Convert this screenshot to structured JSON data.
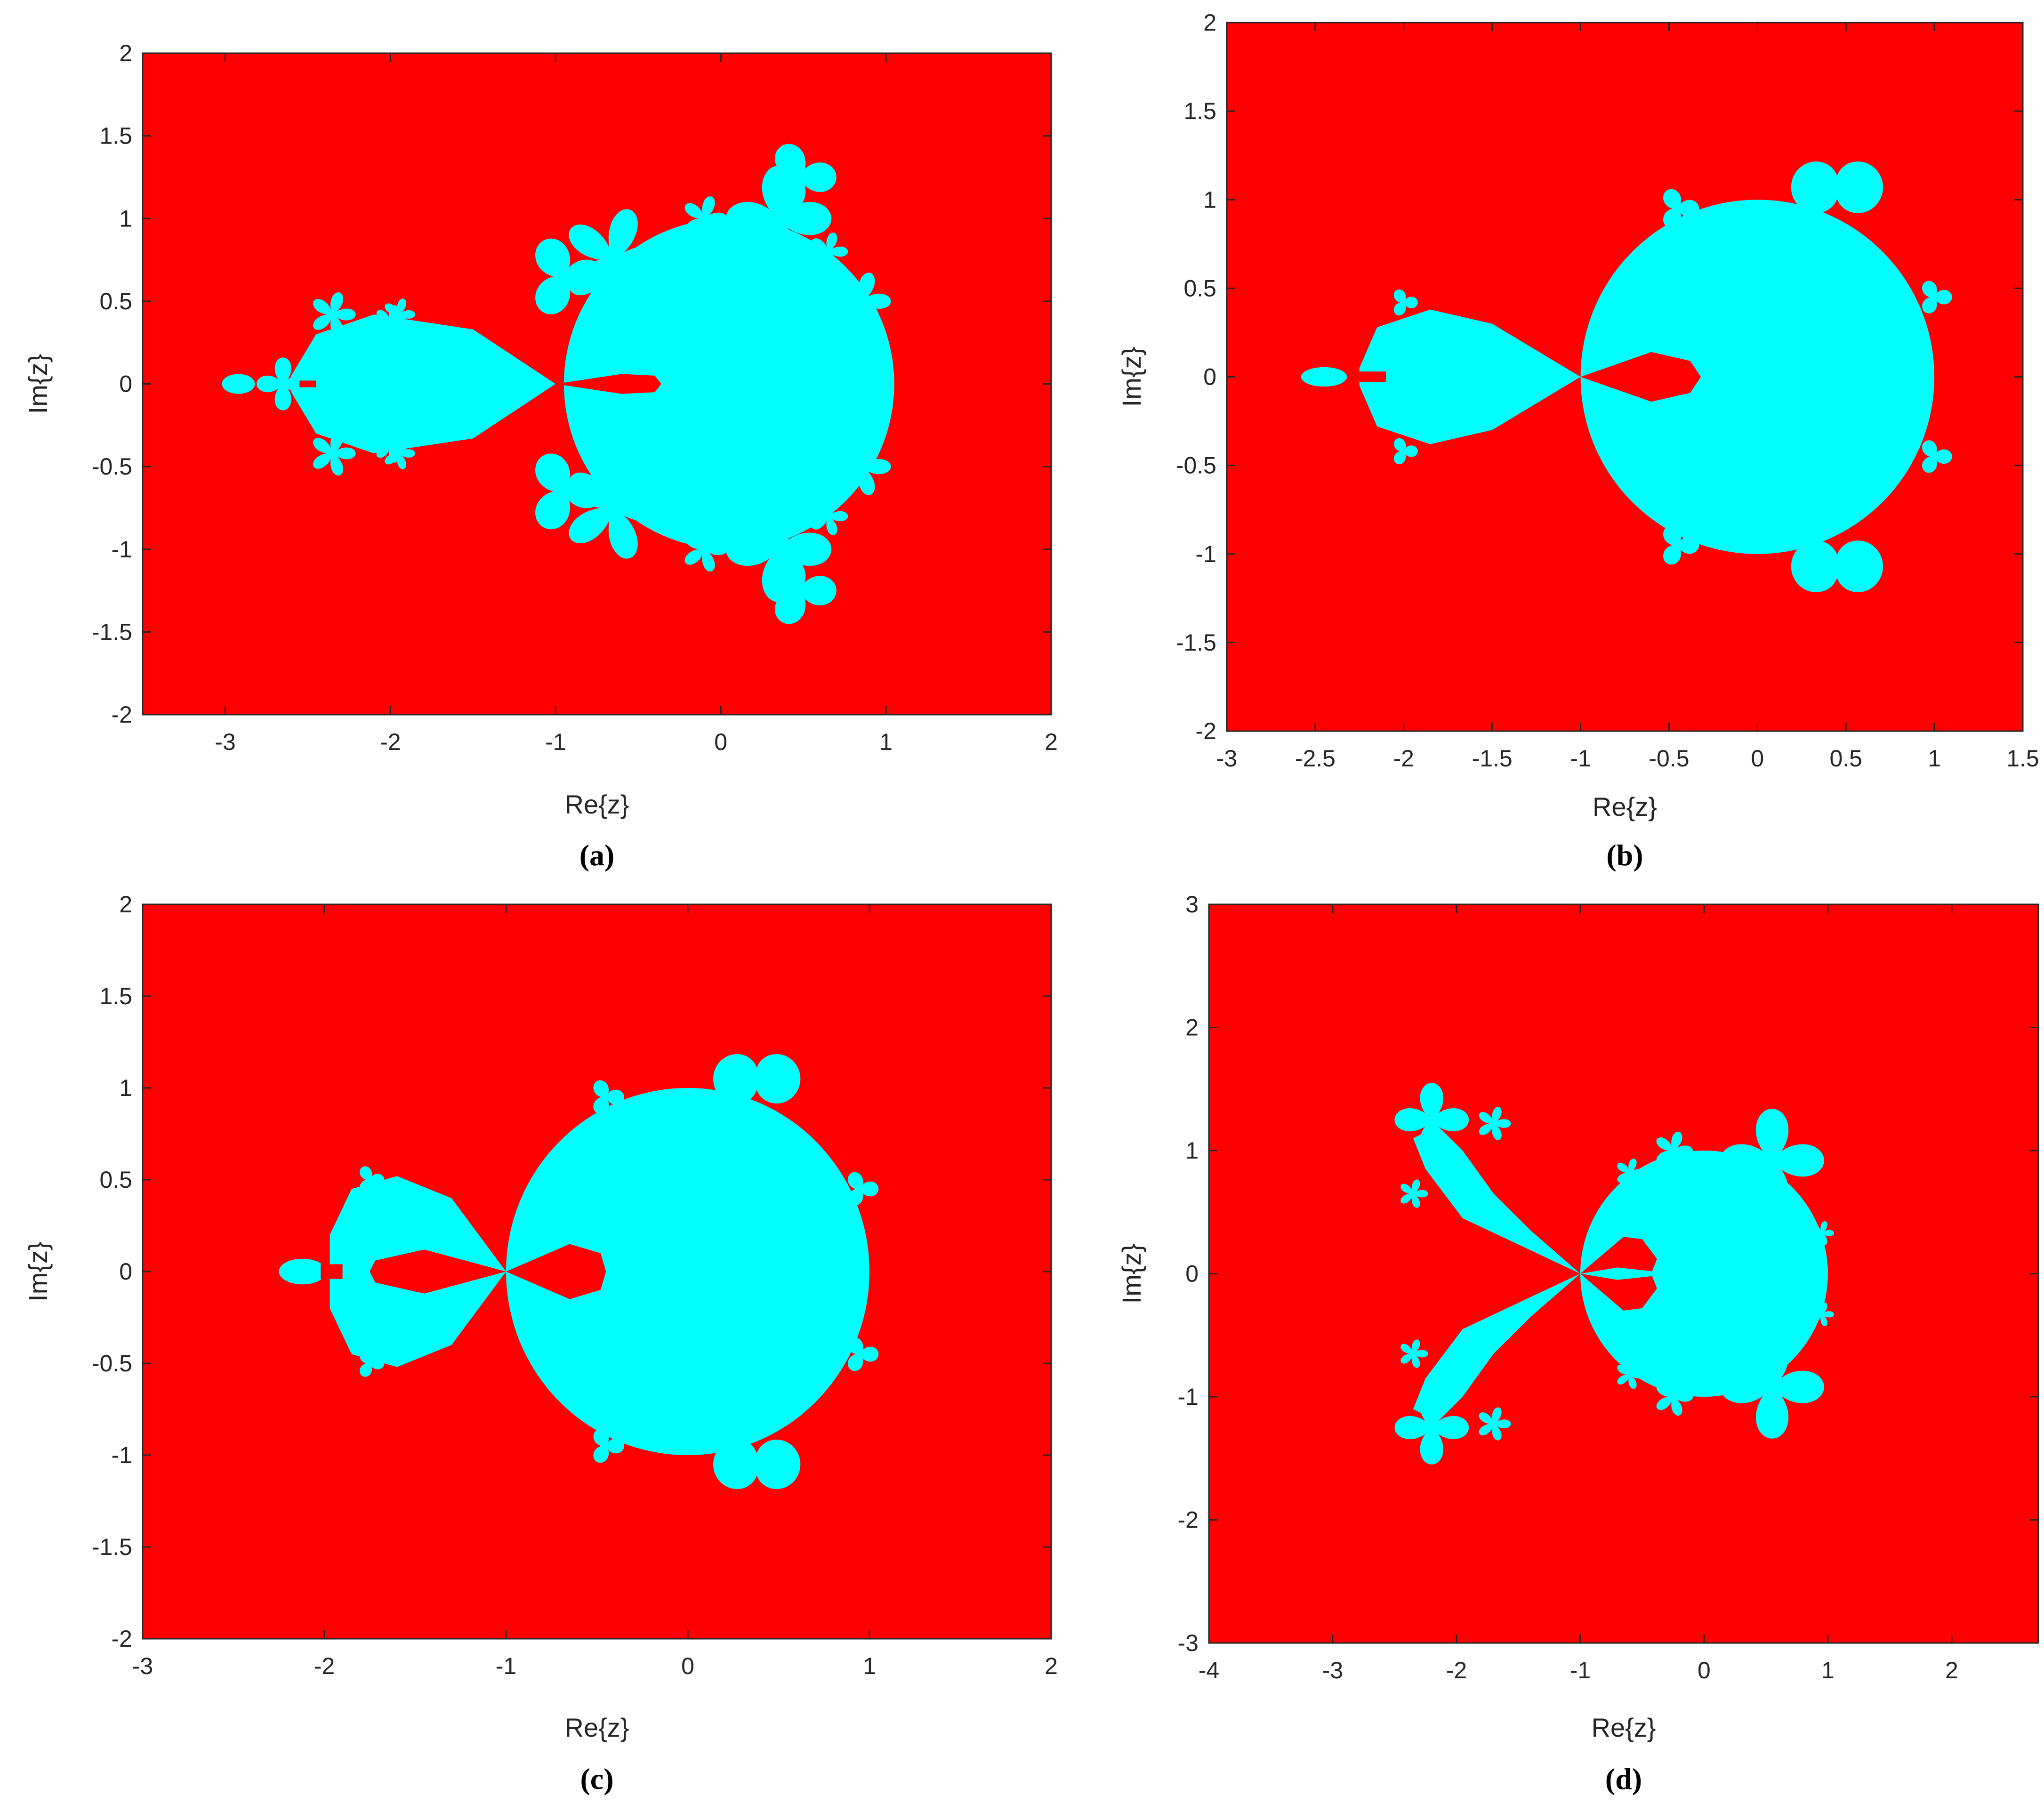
{
  "colors": {
    "background": "#ff0000",
    "fractal": "#00ffff",
    "axis": "#262626"
  },
  "chart_data": [
    {
      "panel": "a",
      "caption": "(a)",
      "type": "heatmap",
      "xlabel": "Re{z}",
      "ylabel": "Im{z}",
      "xlim": [
        -3.5,
        2
      ],
      "ylim": [
        -2,
        2
      ],
      "xticks": [
        -3,
        -2,
        -1,
        0,
        1,
        2
      ],
      "yticks": [
        -2,
        -1.5,
        -1,
        -0.5,
        0,
        0.5,
        1,
        1.5,
        2
      ],
      "xtick_labels": [
        "-3",
        "-2",
        "-1",
        "0",
        "1",
        "2"
      ],
      "ytick_labels": [
        "-2",
        "-1.5",
        "-1",
        "-0.5",
        "0",
        "0.5",
        "1",
        "1.5",
        "2"
      ],
      "grid": false,
      "regions": [
        {
          "shape": "disk",
          "center": [
            0.05,
            0
          ],
          "radius": 1.0
        },
        {
          "shape": "lobe",
          "points": [
            [
              -1,
              0
            ],
            [
              -1.5,
              0.33
            ],
            [
              -2.1,
              0.42
            ],
            [
              -2.45,
              0.3
            ],
            [
              -2.6,
              0.05
            ],
            [
              -2.6,
              -0.05
            ],
            [
              -2.45,
              -0.3
            ],
            [
              -2.1,
              -0.42
            ],
            [
              -1.5,
              -0.33
            ]
          ]
        },
        {
          "shape": "flower",
          "center": [
            -0.65,
            0.75
          ],
          "radius": 0.32,
          "petals": 5
        },
        {
          "shape": "flower",
          "center": [
            -0.65,
            -0.75
          ],
          "radius": 0.32,
          "petals": 5
        },
        {
          "shape": "flower",
          "center": [
            0.35,
            1.0
          ],
          "radius": 0.32,
          "petals": 4
        },
        {
          "shape": "flower",
          "center": [
            0.35,
            -1.0
          ],
          "radius": 0.32,
          "petals": 4
        },
        {
          "shape": "flower",
          "center": [
            0.48,
            1.25
          ],
          "radius": 0.22,
          "petals": 3
        },
        {
          "shape": "flower",
          "center": [
            0.48,
            -1.25
          ],
          "radius": 0.22,
          "petals": 3
        },
        {
          "shape": "flower",
          "center": [
            -0.95,
            0.65
          ],
          "radius": 0.25,
          "petals": 3
        },
        {
          "shape": "flower",
          "center": [
            -0.95,
            -0.65
          ],
          "radius": 0.25,
          "petals": 3
        },
        {
          "shape": "flower",
          "center": [
            -0.1,
            1.0
          ],
          "radius": 0.14,
          "petals": 5
        },
        {
          "shape": "flower",
          "center": [
            -0.1,
            -1.0
          ],
          "radius": 0.14,
          "petals": 5
        },
        {
          "shape": "flower",
          "center": [
            0.85,
            0.5
          ],
          "radius": 0.18,
          "petals": 5
        },
        {
          "shape": "flower",
          "center": [
            0.85,
            -0.5
          ],
          "radius": 0.18,
          "petals": 5
        },
        {
          "shape": "flower",
          "center": [
            0.65,
            0.8
          ],
          "radius": 0.12,
          "petals": 5
        },
        {
          "shape": "flower",
          "center": [
            0.65,
            -0.8
          ],
          "radius": 0.12,
          "petals": 5
        },
        {
          "shape": "flower",
          "center": [
            -2.35,
            0.42
          ],
          "radius": 0.14,
          "petals": 5
        },
        {
          "shape": "flower",
          "center": [
            -2.35,
            -0.42
          ],
          "radius": 0.14,
          "petals": 5
        },
        {
          "shape": "flower",
          "center": [
            -2.0,
            0.38
          ],
          "radius": 0.1,
          "petals": 5
        },
        {
          "shape": "flower",
          "center": [
            -2.0,
            -0.38
          ],
          "radius": 0.1,
          "petals": 5
        },
        {
          "shape": "flower",
          "center": [
            -1.95,
            0.42
          ],
          "radius": 0.1,
          "petals": 5
        },
        {
          "shape": "flower",
          "center": [
            -1.95,
            -0.42
          ],
          "radius": 0.1,
          "petals": 5
        },
        {
          "shape": "flower",
          "center": [
            -2.65,
            0
          ],
          "radius": 0.16,
          "petals": 4
        },
        {
          "shape": "ellipse",
          "center": [
            -2.92,
            0
          ],
          "rx": 0.1,
          "ry": 0.06
        }
      ],
      "holes": [
        {
          "shape": "cusp",
          "points": [
            [
              -1,
              0
            ],
            [
              -0.6,
              0.06
            ],
            [
              -0.4,
              0.05
            ],
            [
              -0.36,
              0
            ],
            [
              -0.4,
              -0.05
            ],
            [
              -0.6,
              -0.06
            ]
          ]
        },
        {
          "shape": "rect",
          "x": [
            -2.55,
            -2.45
          ],
          "y": [
            -0.02,
            0.02
          ]
        }
      ]
    },
    {
      "panel": "b",
      "caption": "(b)",
      "type": "heatmap",
      "xlabel": "Re{z}",
      "ylabel": "Im{z}",
      "xlim": [
        -3,
        1.5
      ],
      "ylim": [
        -2,
        2
      ],
      "xticks": [
        -3,
        -2.5,
        -2,
        -1.5,
        -1,
        -0.5,
        0,
        0.5,
        1,
        1.5
      ],
      "yticks": [
        -2,
        -1.5,
        -1,
        -0.5,
        0,
        0.5,
        1,
        1.5,
        2
      ],
      "xtick_labels": [
        "-3",
        "-2.5",
        "-2",
        "-1.5",
        "-1",
        "-0.5",
        "0",
        "0.5",
        "1",
        "1.5"
      ],
      "ytick_labels": [
        "-2",
        "-1.5",
        "-1",
        "-0.5",
        "0",
        "0.5",
        "1",
        "1.5",
        "2"
      ],
      "grid": false,
      "regions": [
        {
          "shape": "disk",
          "center": [
            0,
            0
          ],
          "radius": 1.0
        },
        {
          "shape": "lobe",
          "points": [
            [
              -1,
              0
            ],
            [
              -1.5,
              0.3
            ],
            [
              -1.85,
              0.38
            ],
            [
              -2.15,
              0.28
            ],
            [
              -2.25,
              0.05
            ],
            [
              -2.25,
              -0.05
            ],
            [
              -2.15,
              -0.28
            ],
            [
              -1.85,
              -0.38
            ],
            [
              -1.5,
              -0.3
            ]
          ]
        },
        {
          "shape": "flower",
          "center": [
            0.45,
            1.07
          ],
          "radius": 0.26,
          "petals": 2
        },
        {
          "shape": "flower",
          "center": [
            0.45,
            -1.07
          ],
          "radius": 0.26,
          "petals": 2
        },
        {
          "shape": "flower",
          "center": [
            -0.45,
            0.95
          ],
          "radius": 0.12,
          "petals": 3
        },
        {
          "shape": "flower",
          "center": [
            -0.45,
            -0.95
          ],
          "radius": 0.12,
          "petals": 3
        },
        {
          "shape": "flower",
          "center": [
            1.0,
            0.45
          ],
          "radius": 0.1,
          "petals": 3
        },
        {
          "shape": "flower",
          "center": [
            1.0,
            -0.45
          ],
          "radius": 0.1,
          "petals": 3
        },
        {
          "shape": "flower",
          "center": [
            -2.0,
            0.42
          ],
          "radius": 0.08,
          "petals": 3
        },
        {
          "shape": "flower",
          "center": [
            -2.0,
            -0.42
          ],
          "radius": 0.08,
          "petals": 3
        },
        {
          "shape": "ellipse",
          "center": [
            -2.45,
            0
          ],
          "rx": 0.13,
          "ry": 0.055
        }
      ],
      "holes": [
        {
          "shape": "cusp",
          "points": [
            [
              -1,
              0
            ],
            [
              -0.6,
              0.14
            ],
            [
              -0.38,
              0.09
            ],
            [
              -0.32,
              0
            ],
            [
              -0.38,
              -0.09
            ],
            [
              -0.6,
              -0.14
            ]
          ]
        },
        {
          "shape": "rect",
          "x": [
            -2.25,
            -2.1
          ],
          "y": [
            -0.03,
            0.03
          ]
        }
      ]
    },
    {
      "panel": "c",
      "caption": "(c)",
      "type": "heatmap",
      "xlabel": "Re{z}",
      "ylabel": "Im{z}",
      "xlim": [
        -3,
        2
      ],
      "ylim": [
        -2,
        2
      ],
      "xticks": [
        -3,
        -2,
        -1,
        0,
        1,
        2
      ],
      "yticks": [
        -2,
        -1.5,
        -1,
        -0.5,
        0,
        0.5,
        1,
        1.5,
        2
      ],
      "xtick_labels": [
        "-3",
        "-2",
        "-1",
        "0",
        "1",
        "2"
      ],
      "ytick_labels": [
        "-2",
        "-1.5",
        "-1",
        "-0.5",
        "0",
        "0.5",
        "1",
        "1.5",
        "2"
      ],
      "grid": false,
      "regions": [
        {
          "shape": "disk",
          "center": [
            0,
            0
          ],
          "radius": 1.0
        },
        {
          "shape": "lobe",
          "points": [
            [
              -1,
              0
            ],
            [
              -1.3,
              0.4
            ],
            [
              -1.6,
              0.52
            ],
            [
              -1.85,
              0.45
            ],
            [
              -1.97,
              0.2
            ],
            [
              -1.97,
              -0.2
            ],
            [
              -1.85,
              -0.45
            ],
            [
              -1.6,
              -0.52
            ],
            [
              -1.3,
              -0.4
            ]
          ]
        },
        {
          "shape": "flower",
          "center": [
            0.38,
            1.05
          ],
          "radius": 0.24,
          "petals": 2
        },
        {
          "shape": "flower",
          "center": [
            0.38,
            -1.05
          ],
          "radius": 0.24,
          "petals": 2
        },
        {
          "shape": "flower",
          "center": [
            -0.45,
            0.95
          ],
          "radius": 0.1,
          "petals": 3
        },
        {
          "shape": "flower",
          "center": [
            -0.45,
            -0.95
          ],
          "radius": 0.1,
          "petals": 3
        },
        {
          "shape": "flower",
          "center": [
            0.95,
            0.45
          ],
          "radius": 0.1,
          "petals": 3
        },
        {
          "shape": "flower",
          "center": [
            0.95,
            -0.45
          ],
          "radius": 0.1,
          "petals": 3
        },
        {
          "shape": "flower",
          "center": [
            -1.75,
            0.5
          ],
          "radius": 0.08,
          "petals": 3
        },
        {
          "shape": "flower",
          "center": [
            -1.75,
            -0.5
          ],
          "radius": 0.08,
          "petals": 3
        },
        {
          "shape": "ellipse",
          "center": [
            -2.12,
            0
          ],
          "rx": 0.13,
          "ry": 0.07
        }
      ],
      "holes": [
        {
          "shape": "cusp",
          "points": [
            [
              -1,
              0
            ],
            [
              -0.65,
              0.15
            ],
            [
              -0.48,
              0.1
            ],
            [
              -0.45,
              0
            ],
            [
              -0.48,
              -0.1
            ],
            [
              -0.65,
              -0.15
            ]
          ]
        },
        {
          "shape": "cusp",
          "points": [
            [
              -1,
              0
            ],
            [
              -1.45,
              0.12
            ],
            [
              -1.72,
              0.06
            ],
            [
              -1.75,
              0
            ],
            [
              -1.72,
              -0.06
            ],
            [
              -1.45,
              -0.12
            ]
          ]
        },
        {
          "shape": "rect",
          "x": [
            -2.02,
            -1.9
          ],
          "y": [
            -0.04,
            0.04
          ]
        }
      ]
    },
    {
      "panel": "d",
      "caption": "(d)",
      "type": "heatmap",
      "xlabel": "Re{z}",
      "ylabel": "Im{z}",
      "xlim": [
        -4,
        2.7
      ],
      "ylim": [
        -3,
        3
      ],
      "xticks": [
        -4,
        -3,
        -2,
        -1,
        0,
        1,
        2
      ],
      "yticks": [
        -3,
        -2,
        -1,
        0,
        1,
        2,
        3
      ],
      "xtick_labels": [
        "-4",
        "-3",
        "-2",
        "-1",
        "0",
        "1",
        "2"
      ],
      "ytick_labels": [
        "-3",
        "-2",
        "-1",
        "0",
        "1",
        "2",
        "3"
      ],
      "grid": false,
      "regions": [
        {
          "shape": "disk",
          "center": [
            0,
            0
          ],
          "radius": 1.0
        },
        {
          "shape": "lobe",
          "points": [
            [
              -1,
              0
            ],
            [
              -1.4,
              0.35
            ],
            [
              -1.7,
              0.65
            ],
            [
              -1.95,
              1.0
            ],
            [
              -2.15,
              1.2
            ],
            [
              -2.35,
              1.1
            ],
            [
              -2.25,
              0.85
            ],
            [
              -1.95,
              0.45
            ]
          ]
        },
        {
          "shape": "lobe",
          "points": [
            [
              -1,
              0
            ],
            [
              -1.4,
              -0.35
            ],
            [
              -1.7,
              -0.65
            ],
            [
              -1.95,
              -1.0
            ],
            [
              -2.15,
              -1.2
            ],
            [
              -2.35,
              -1.1
            ],
            [
              -2.25,
              -0.85
            ],
            [
              -1.95,
              -0.45
            ]
          ]
        },
        {
          "shape": "flower",
          "center": [
            0.55,
            0.92
          ],
          "radius": 0.42,
          "petals": 4
        },
        {
          "shape": "flower",
          "center": [
            0.55,
            -0.92
          ],
          "radius": 0.42,
          "petals": 4
        },
        {
          "shape": "flower",
          "center": [
            -2.2,
            1.25
          ],
          "radius": 0.3,
          "petals": 4
        },
        {
          "shape": "flower",
          "center": [
            -2.2,
            -1.25
          ],
          "radius": 0.3,
          "petals": 4
        },
        {
          "shape": "flower",
          "center": [
            -0.25,
            1.0
          ],
          "radius": 0.16,
          "petals": 5
        },
        {
          "shape": "flower",
          "center": [
            -0.25,
            -1.0
          ],
          "radius": 0.16,
          "petals": 5
        },
        {
          "shape": "flower",
          "center": [
            -0.6,
            0.82
          ],
          "radius": 0.12,
          "petals": 5
        },
        {
          "shape": "flower",
          "center": [
            -0.6,
            -0.82
          ],
          "radius": 0.12,
          "petals": 5
        },
        {
          "shape": "flower",
          "center": [
            -1.7,
            1.22
          ],
          "radius": 0.14,
          "petals": 5
        },
        {
          "shape": "flower",
          "center": [
            -1.7,
            -1.22
          ],
          "radius": 0.14,
          "petals": 5
        },
        {
          "shape": "flower",
          "center": [
            -2.35,
            0.65
          ],
          "radius": 0.12,
          "petals": 5
        },
        {
          "shape": "flower",
          "center": [
            -2.35,
            -0.65
          ],
          "radius": 0.12,
          "petals": 5
        },
        {
          "shape": "flower",
          "center": [
            0.95,
            0.33
          ],
          "radius": 0.1,
          "petals": 5
        },
        {
          "shape": "flower",
          "center": [
            0.95,
            -0.33
          ],
          "radius": 0.1,
          "petals": 5
        }
      ],
      "holes": [
        {
          "shape": "cusp",
          "points": [
            [
              -1,
              0
            ],
            [
              -0.65,
              0.3
            ],
            [
              -0.5,
              0.28
            ],
            [
              -0.38,
              0.12
            ],
            [
              -0.42,
              0.02
            ],
            [
              -0.7,
              0.05
            ]
          ]
        },
        {
          "shape": "cusp",
          "points": [
            [
              -1,
              0
            ],
            [
              -0.65,
              -0.3
            ],
            [
              -0.5,
              -0.28
            ],
            [
              -0.38,
              -0.12
            ],
            [
              -0.42,
              -0.02
            ],
            [
              -0.7,
              -0.05
            ]
          ]
        }
      ]
    }
  ]
}
